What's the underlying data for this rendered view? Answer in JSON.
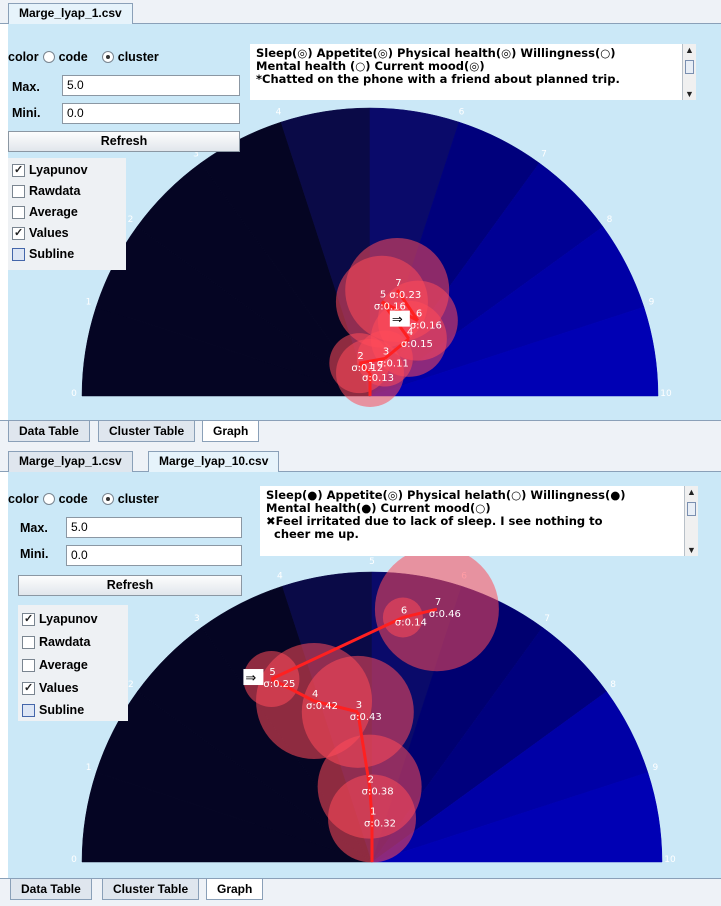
{
  "panels": [
    {
      "file_tabs": [
        "Marge_lyap_1.csv"
      ],
      "active_tab": 0,
      "controls": {
        "color_label": "color",
        "code_label": "code",
        "cluster_label": "cluster",
        "selected": "cluster",
        "max_label": "Max.",
        "max_value": "5.0",
        "min_label": "Mini.",
        "min_value": "0.0",
        "refresh_label": "Refresh",
        "checkboxes": [
          {
            "label": "Lyapunov",
            "checked": true
          },
          {
            "label": "Rawdata",
            "checked": false
          },
          {
            "label": "Average",
            "checked": false
          },
          {
            "label": "Values",
            "checked": true
          },
          {
            "label": "Subline",
            "checked": false
          }
        ]
      },
      "note": {
        "line1": "Sleep(◎) Appetite(◎) Physical health(◎) Willingness(○)",
        "line2": "Mental health (○) Current mood(◎)",
        "line3": "*Chatted on the phone with a friend about planned trip."
      },
      "gauge": {
        "scale_labels": [
          "0",
          "1",
          "2",
          "3",
          "4",
          "5",
          "6",
          "7",
          "8",
          "9",
          "10"
        ],
        "sector_colors": [
          "#050523",
          "#050523",
          "#050523",
          "#050523",
          "#0a0a47",
          "#0a0a6a",
          "#00007c",
          "#000094",
          "#0000a6",
          "#0000b4",
          "#0000c2"
        ]
      },
      "nodes": [
        {
          "id": "1",
          "sigma": "σ:0.13",
          "value": 5.0,
          "radius_ratio": 0.08
        },
        {
          "id": "2",
          "sigma": "σ:0.12",
          "value": 4.0,
          "radius_ratio": 0.12
        },
        {
          "id": "3",
          "sigma": "σ:0.11",
          "value": 6.2,
          "radius_ratio": 0.14
        },
        {
          "id": "4",
          "sigma": "σ:0.15",
          "value": 6.9,
          "radius_ratio": 0.24
        },
        {
          "id": "5",
          "sigma": "σ:0.16",
          "value": 5.4,
          "radius_ratio": 0.33
        },
        {
          "id": "6",
          "sigma": "σ:0.16",
          "value": 6.8,
          "radius_ratio": 0.31,
          "current": true
        },
        {
          "id": "7",
          "sigma": "σ:0.23",
          "value": 5.8,
          "radius_ratio": 0.38
        }
      ],
      "bottom_tabs": [
        "Data Table",
        "Cluster Table",
        "Graph"
      ],
      "active_bottom": 2
    },
    {
      "file_tabs": [
        "Marge_lyap_1.csv",
        "Marge_lyap_10.csv"
      ],
      "active_tab": 1,
      "controls": {
        "color_label": "color",
        "code_label": "code",
        "cluster_label": "cluster",
        "selected": "cluster",
        "max_label": "Max.",
        "max_value": "5.0",
        "min_label": "Mini.",
        "min_value": "0.0",
        "refresh_label": "Refresh",
        "checkboxes": [
          {
            "label": "Lyapunov",
            "checked": true
          },
          {
            "label": "Rawdata",
            "checked": false
          },
          {
            "label": "Average",
            "checked": false
          },
          {
            "label": "Values",
            "checked": true
          },
          {
            "label": "Subline",
            "checked": false
          }
        ]
      },
      "note": {
        "line1": "Sleep(●) Appetite(◎) Physical helath(○) Willingness(●)",
        "line2": "Mental health(●) Current mood(○)",
        "line3": "✖Feel irritated due to lack of sleep. I see nothing to",
        "line4": "  cheer me up."
      },
      "gauge": {
        "scale_labels": [
          "0",
          "1",
          "2",
          "3",
          "4",
          "5",
          "6",
          "7",
          "8",
          "9",
          "10"
        ],
        "sector_colors": [
          "#050523",
          "#050523",
          "#050523",
          "#050523",
          "#0a0a47",
          "#0a0a6a",
          "#000070",
          "#00007e",
          "#0000a6",
          "#0000b4",
          "#0000c2"
        ]
      },
      "nodes": [
        {
          "id": "1",
          "sigma": "σ:0.32",
          "value": 5.0,
          "radius_ratio": 0.15
        },
        {
          "id": "2",
          "sigma": "σ:0.38",
          "value": 4.9,
          "radius_ratio": 0.26
        },
        {
          "id": "3",
          "sigma": "σ:0.43",
          "value": 4.7,
          "radius_ratio": 0.52
        },
        {
          "id": "4",
          "sigma": "σ:0.42",
          "value": 3.9,
          "radius_ratio": 0.59
        },
        {
          "id": "5",
          "sigma": "σ:0.25",
          "value": 3.4,
          "radius_ratio": 0.72,
          "current": true
        },
        {
          "id": "6",
          "sigma": "σ:0.14",
          "value": 5.4,
          "radius_ratio": 0.85
        },
        {
          "id": "7",
          "sigma": "σ:0.46",
          "value": 5.8,
          "radius_ratio": 0.9
        }
      ],
      "bottom_tabs": [
        "Data Table",
        "Cluster Table",
        "Graph"
      ],
      "active_bottom": 2
    }
  ]
}
